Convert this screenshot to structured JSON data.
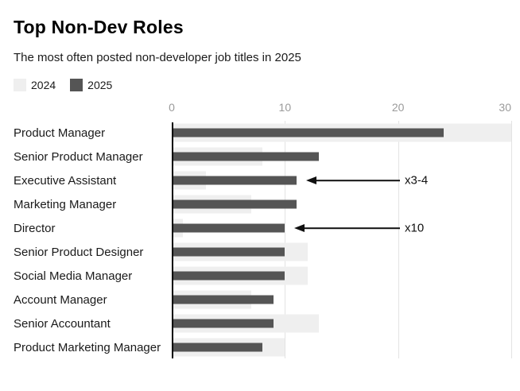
{
  "header": {
    "title": "Top Non-Dev Roles",
    "subtitle": "The most often posted non-developer job titles in 2025"
  },
  "legend": [
    {
      "label": "2024",
      "color": "#efefef"
    },
    {
      "label": "2025",
      "color": "#555555"
    }
  ],
  "colors": {
    "bar_2024": "#efefef",
    "bar_2025": "#555555",
    "gridline": "#e3e3e3",
    "axis_line": "#000000",
    "tick_text": "#9a9a9a",
    "annotation": "#111111"
  },
  "chart_data": {
    "type": "bar",
    "orientation": "horizontal",
    "title": "Top Non-Dev Roles",
    "subtitle": "The most often posted non-developer job titles in 2025",
    "categories": [
      "Product Manager",
      "Senior Product Manager",
      "Executive Assistant",
      "Marketing Manager",
      "Director",
      "Senior Product Designer",
      "Social Media Manager",
      "Account Manager",
      "Senior Accountant",
      "Product Marketing Manager"
    ],
    "series": [
      {
        "name": "2024",
        "values": [
          30,
          8,
          3,
          7,
          1,
          12,
          12,
          7,
          13,
          10
        ]
      },
      {
        "name": "2025",
        "values": [
          24,
          13,
          11,
          11,
          10,
          10,
          10,
          9,
          9,
          8
        ]
      }
    ],
    "xlim": [
      0,
      30
    ],
    "x_ticks": [
      0,
      10,
      20,
      30
    ],
    "grid": "vertical",
    "legend_position": "top-left",
    "annotations": [
      {
        "label": "x3-4",
        "target_category": "Executive Assistant",
        "target_series": "2025"
      },
      {
        "label": "x10",
        "target_category": "Director",
        "target_series": "2025"
      }
    ]
  }
}
